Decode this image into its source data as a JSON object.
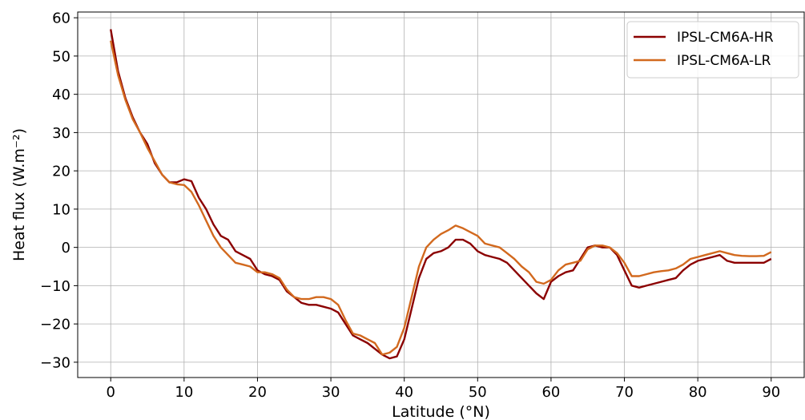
{
  "chart_data": {
    "type": "line",
    "xlabel": "Latitude (°N)",
    "ylabel": "Heat flux (W.m⁻²)",
    "xlim": [
      -4.5,
      94.5
    ],
    "ylim": [
      -34,
      61.5
    ],
    "xticks": [
      0,
      10,
      20,
      30,
      40,
      50,
      60,
      70,
      80,
      90
    ],
    "yticks": [
      -30,
      -20,
      -10,
      0,
      10,
      20,
      30,
      40,
      50,
      60
    ],
    "xtick_labels": [
      "0",
      "10",
      "20",
      "30",
      "40",
      "50",
      "60",
      "70",
      "80",
      "90"
    ],
    "ytick_labels": [
      "−30",
      "−20",
      "−10",
      "0",
      "10",
      "20",
      "30",
      "40",
      "50",
      "60"
    ],
    "grid": true,
    "legend": {
      "position": "top-right"
    },
    "series": [
      {
        "name": "IPSL-CM6A-HR",
        "color": "#8b0000",
        "points": [
          [
            0,
            57
          ],
          [
            1,
            46
          ],
          [
            2,
            39
          ],
          [
            3,
            34
          ],
          [
            4,
            30
          ],
          [
            5,
            27
          ],
          [
            6,
            22
          ],
          [
            7,
            19
          ],
          [
            8,
            17
          ],
          [
            9,
            17
          ],
          [
            10,
            17.8
          ],
          [
            11,
            17.3
          ],
          [
            12,
            13
          ],
          [
            13,
            10
          ],
          [
            14,
            6
          ],
          [
            15,
            3
          ],
          [
            16,
            2
          ],
          [
            17,
            -1
          ],
          [
            18,
            -2
          ],
          [
            19,
            -3
          ],
          [
            20,
            -6
          ],
          [
            21,
            -7
          ],
          [
            22,
            -7.5
          ],
          [
            23,
            -8.5
          ],
          [
            24,
            -11.5
          ],
          [
            25,
            -13
          ],
          [
            26,
            -14.5
          ],
          [
            27,
            -15
          ],
          [
            28,
            -15
          ],
          [
            29,
            -15.5
          ],
          [
            30,
            -16
          ],
          [
            31,
            -17
          ],
          [
            32,
            -20
          ],
          [
            33,
            -23
          ],
          [
            34,
            -24
          ],
          [
            35,
            -25
          ],
          [
            36,
            -26.5
          ],
          [
            37,
            -28
          ],
          [
            38,
            -29
          ],
          [
            39,
            -28.5
          ],
          [
            40,
            -24
          ],
          [
            41,
            -16
          ],
          [
            42,
            -8
          ],
          [
            43,
            -3
          ],
          [
            44,
            -1.5
          ],
          [
            45,
            -1
          ],
          [
            46,
            0
          ],
          [
            47,
            2
          ],
          [
            48,
            2
          ],
          [
            49,
            1
          ],
          [
            50,
            -1
          ],
          [
            51,
            -2
          ],
          [
            52,
            -2.5
          ],
          [
            53,
            -3
          ],
          [
            54,
            -4
          ],
          [
            55,
            -6
          ],
          [
            56,
            -8
          ],
          [
            57,
            -10
          ],
          [
            58,
            -12
          ],
          [
            59,
            -13.5
          ],
          [
            60,
            -9
          ],
          [
            61,
            -7.5
          ],
          [
            62,
            -6.5
          ],
          [
            63,
            -6
          ],
          [
            64,
            -3
          ],
          [
            65,
            0
          ],
          [
            66,
            0.5
          ],
          [
            67,
            0
          ],
          [
            68,
            0
          ],
          [
            69,
            -2
          ],
          [
            70,
            -6
          ],
          [
            71,
            -10
          ],
          [
            72,
            -10.5
          ],
          [
            73,
            -10
          ],
          [
            74,
            -9.5
          ],
          [
            75,
            -9
          ],
          [
            76,
            -8.5
          ],
          [
            77,
            -8
          ],
          [
            78,
            -6
          ],
          [
            79,
            -4.5
          ],
          [
            80,
            -3.5
          ],
          [
            81,
            -3
          ],
          [
            82,
            -2.5
          ],
          [
            83,
            -2
          ],
          [
            84,
            -3.5
          ],
          [
            85,
            -4
          ],
          [
            86,
            -4
          ],
          [
            87,
            -4
          ],
          [
            88,
            -4
          ],
          [
            89,
            -4
          ],
          [
            90,
            -3
          ]
        ]
      },
      {
        "name": "IPSL-CM6A-LR",
        "color": "#d2691e",
        "points": [
          [
            0,
            54
          ],
          [
            1,
            45
          ],
          [
            2,
            38.5
          ],
          [
            3,
            33.5
          ],
          [
            4,
            30
          ],
          [
            5,
            26
          ],
          [
            6,
            22.5
          ],
          [
            7,
            19
          ],
          [
            8,
            17
          ],
          [
            9,
            16.5
          ],
          [
            10,
            16.3
          ],
          [
            11,
            14.5
          ],
          [
            12,
            11
          ],
          [
            13,
            7
          ],
          [
            14,
            3
          ],
          [
            15,
            0
          ],
          [
            16,
            -2
          ],
          [
            17,
            -4
          ],
          [
            18,
            -4.5
          ],
          [
            19,
            -5
          ],
          [
            20,
            -6.5
          ],
          [
            21,
            -6.5
          ],
          [
            22,
            -7
          ],
          [
            23,
            -8
          ],
          [
            24,
            -11
          ],
          [
            25,
            -13
          ],
          [
            26,
            -13.5
          ],
          [
            27,
            -13.5
          ],
          [
            28,
            -13
          ],
          [
            29,
            -13
          ],
          [
            30,
            -13.5
          ],
          [
            31,
            -15
          ],
          [
            32,
            -19
          ],
          [
            33,
            -22.5
          ],
          [
            34,
            -23
          ],
          [
            35,
            -24
          ],
          [
            36,
            -25
          ],
          [
            37,
            -28
          ],
          [
            38,
            -27.5
          ],
          [
            39,
            -26
          ],
          [
            40,
            -21
          ],
          [
            41,
            -13
          ],
          [
            42,
            -5
          ],
          [
            43,
            0
          ],
          [
            44,
            2
          ],
          [
            45,
            3.5
          ],
          [
            46,
            4.5
          ],
          [
            47,
            5.7
          ],
          [
            48,
            5
          ],
          [
            49,
            4
          ],
          [
            50,
            3
          ],
          [
            51,
            1
          ],
          [
            52,
            0.5
          ],
          [
            53,
            0
          ],
          [
            54,
            -1.5
          ],
          [
            55,
            -3
          ],
          [
            56,
            -5
          ],
          [
            57,
            -6.5
          ],
          [
            58,
            -9
          ],
          [
            59,
            -9.5
          ],
          [
            60,
            -8.5
          ],
          [
            61,
            -6
          ],
          [
            62,
            -4.5
          ],
          [
            63,
            -4
          ],
          [
            64,
            -3.5
          ],
          [
            65,
            -0.5
          ],
          [
            66,
            0.5
          ],
          [
            67,
            0.5
          ],
          [
            68,
            0
          ],
          [
            69,
            -1.5
          ],
          [
            70,
            -4
          ],
          [
            71,
            -7.5
          ],
          [
            72,
            -7.5
          ],
          [
            73,
            -7
          ],
          [
            74,
            -6.5
          ],
          [
            75,
            -6.2
          ],
          [
            76,
            -6
          ],
          [
            77,
            -5.5
          ],
          [
            78,
            -4.5
          ],
          [
            79,
            -3
          ],
          [
            80,
            -2.5
          ],
          [
            81,
            -2
          ],
          [
            82,
            -1.5
          ],
          [
            83,
            -1
          ],
          [
            84,
            -1.5
          ],
          [
            85,
            -2
          ],
          [
            86,
            -2.2
          ],
          [
            87,
            -2.3
          ],
          [
            88,
            -2.3
          ],
          [
            89,
            -2.2
          ],
          [
            90,
            -1.2
          ]
        ]
      }
    ]
  }
}
